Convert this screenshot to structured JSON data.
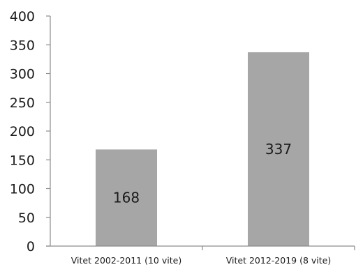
{
  "chart_data": {
    "type": "bar",
    "categories": [
      "Vitet 2002-2011 (10 vite)",
      "Vitet 2012-2019 (8 vite)"
    ],
    "values": [
      168,
      337
    ],
    "data_labels": [
      "168",
      "337"
    ],
    "ylim": [
      0,
      400
    ],
    "yticks": [
      0,
      50,
      100,
      150,
      200,
      250,
      300,
      350,
      400
    ],
    "ytick_labels": [
      "0",
      "50",
      "100",
      "150",
      "200",
      "250",
      "300",
      "350",
      "400"
    ],
    "title": "",
    "xlabel": "",
    "ylabel": "",
    "grid": false,
    "legend": "none",
    "colors": {
      "bar": "#a6a6a6",
      "axis": "#8c8c8c",
      "text": "#1a1a1a"
    }
  }
}
